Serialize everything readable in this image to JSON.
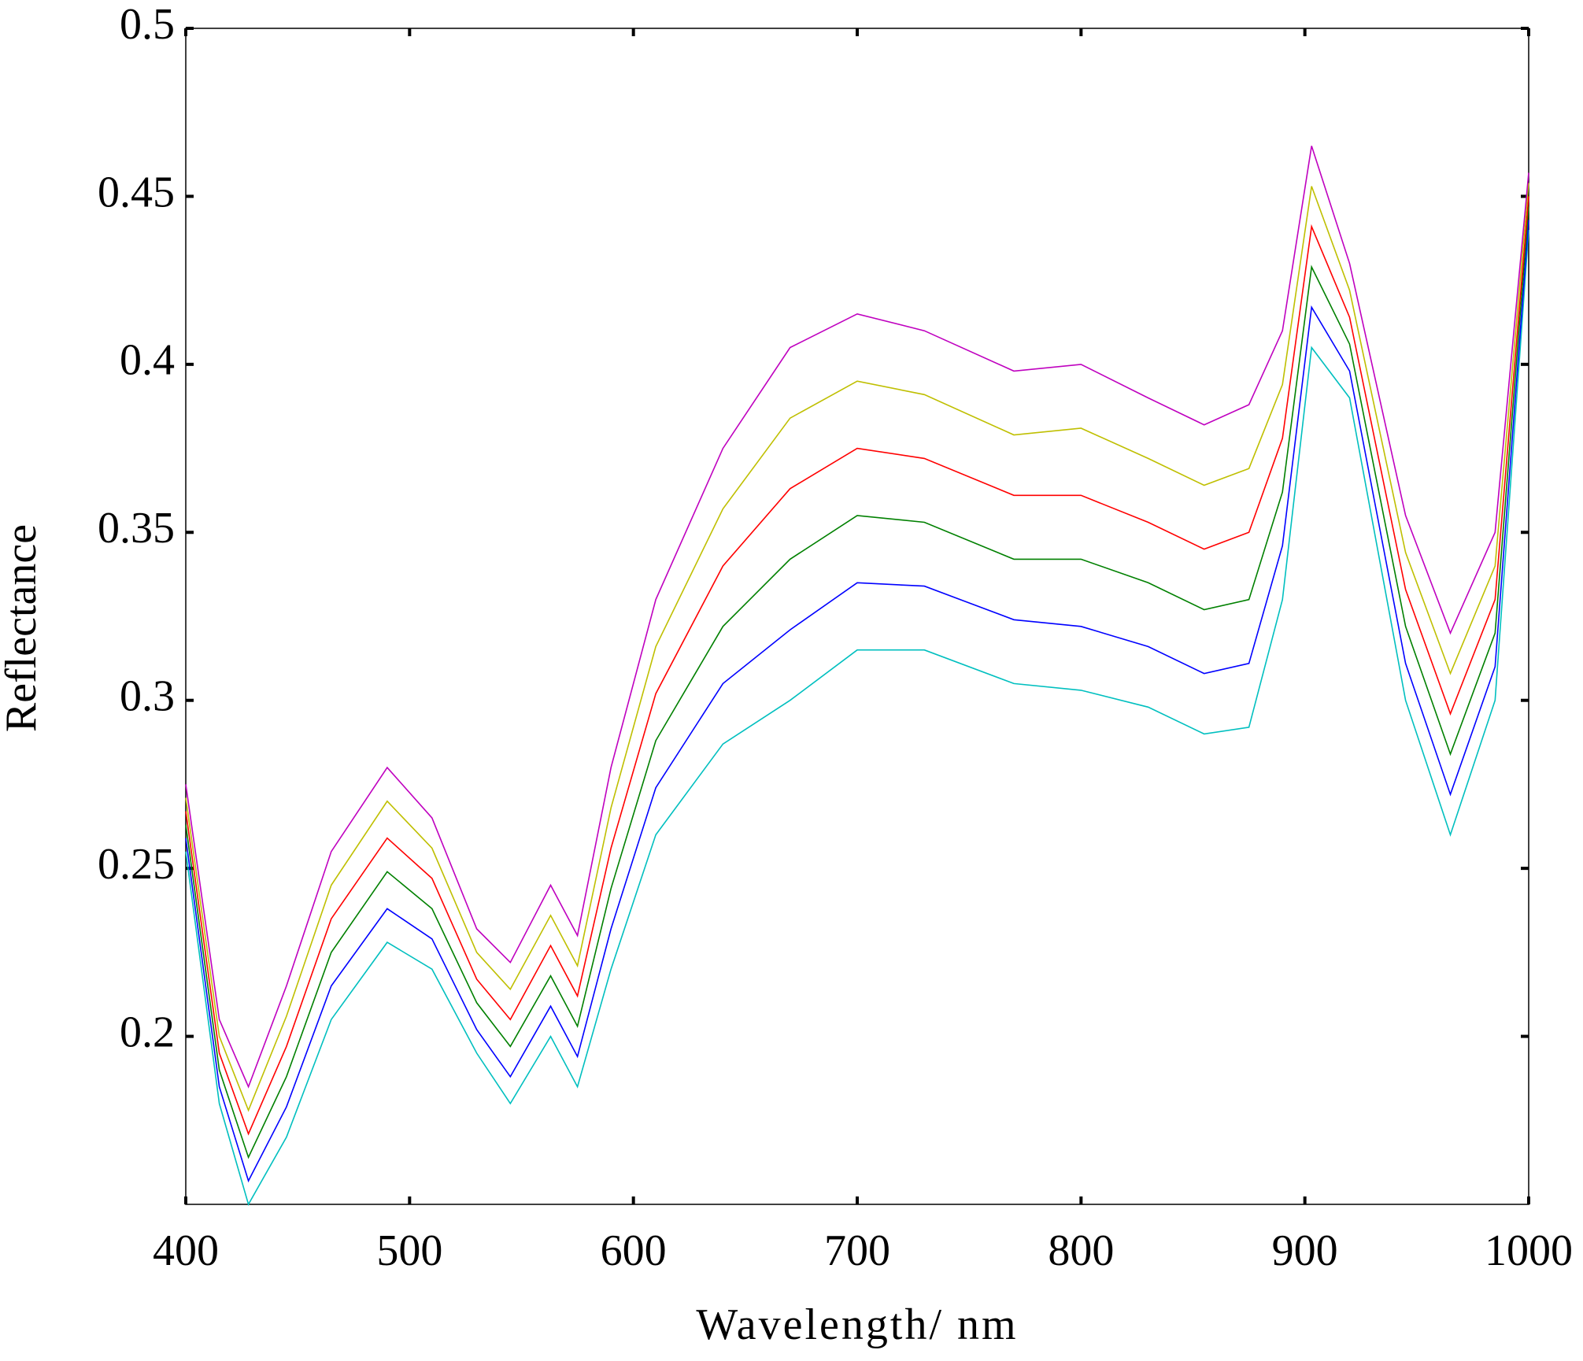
{
  "chart_data": {
    "type": "line",
    "x_label": "Wavelength/ nm",
    "y_label": "Reflectance",
    "x": [
      400,
      415,
      428,
      445,
      465,
      490,
      510,
      530,
      545,
      563,
      575,
      590,
      610,
      640,
      670,
      700,
      730,
      770,
      800,
      830,
      855,
      875,
      890,
      903,
      920,
      945,
      965,
      985,
      1000
    ],
    "series": [
      {
        "color": "#00bfbf",
        "values": [
          0.255,
          0.18,
          0.15,
          0.17,
          0.205,
          0.228,
          0.22,
          0.195,
          0.18,
          0.2,
          0.185,
          0.22,
          0.26,
          0.287,
          0.3,
          0.315,
          0.315,
          0.305,
          0.303,
          0.298,
          0.29,
          0.292,
          0.33,
          0.405,
          0.39,
          0.3,
          0.26,
          0.3,
          0.44
        ]
      },
      {
        "color": "#0000ff",
        "values": [
          0.259,
          0.185,
          0.157,
          0.179,
          0.215,
          0.238,
          0.229,
          0.202,
          0.188,
          0.209,
          0.194,
          0.232,
          0.274,
          0.305,
          0.321,
          0.335,
          0.334,
          0.324,
          0.322,
          0.316,
          0.308,
          0.311,
          0.346,
          0.417,
          0.398,
          0.311,
          0.272,
          0.31,
          0.443
        ]
      },
      {
        "color": "#008000",
        "values": [
          0.263,
          0.19,
          0.164,
          0.188,
          0.225,
          0.249,
          0.238,
          0.21,
          0.197,
          0.218,
          0.203,
          0.244,
          0.288,
          0.322,
          0.342,
          0.355,
          0.353,
          0.342,
          0.342,
          0.335,
          0.327,
          0.33,
          0.362,
          0.429,
          0.406,
          0.322,
          0.284,
          0.32,
          0.447
        ]
      },
      {
        "color": "#ff0000",
        "values": [
          0.267,
          0.195,
          0.171,
          0.197,
          0.235,
          0.259,
          0.247,
          0.217,
          0.205,
          0.227,
          0.212,
          0.256,
          0.302,
          0.34,
          0.363,
          0.375,
          0.372,
          0.361,
          0.361,
          0.353,
          0.345,
          0.35,
          0.378,
          0.441,
          0.414,
          0.333,
          0.296,
          0.33,
          0.45
        ]
      },
      {
        "color": "#bfbf00",
        "values": [
          0.271,
          0.2,
          0.178,
          0.206,
          0.245,
          0.27,
          0.256,
          0.225,
          0.214,
          0.236,
          0.221,
          0.268,
          0.316,
          0.357,
          0.384,
          0.395,
          0.391,
          0.379,
          0.381,
          0.372,
          0.364,
          0.369,
          0.394,
          0.453,
          0.422,
          0.344,
          0.308,
          0.34,
          0.454
        ]
      },
      {
        "color": "#bf00bf",
        "values": [
          0.275,
          0.205,
          0.185,
          0.215,
          0.255,
          0.28,
          0.265,
          0.232,
          0.222,
          0.245,
          0.23,
          0.28,
          0.33,
          0.375,
          0.405,
          0.415,
          0.41,
          0.398,
          0.4,
          0.39,
          0.382,
          0.388,
          0.41,
          0.465,
          0.43,
          0.355,
          0.32,
          0.35,
          0.457
        ]
      }
    ],
    "xlim": [
      400,
      1000
    ],
    "xticks": [
      400,
      500,
      600,
      700,
      800,
      900,
      1000
    ],
    "ylim": [
      0.15,
      0.5
    ],
    "yticks": [
      0.2,
      0.25,
      0.3,
      0.35,
      0.4,
      0.45,
      0.5
    ],
    "grid": false
  }
}
